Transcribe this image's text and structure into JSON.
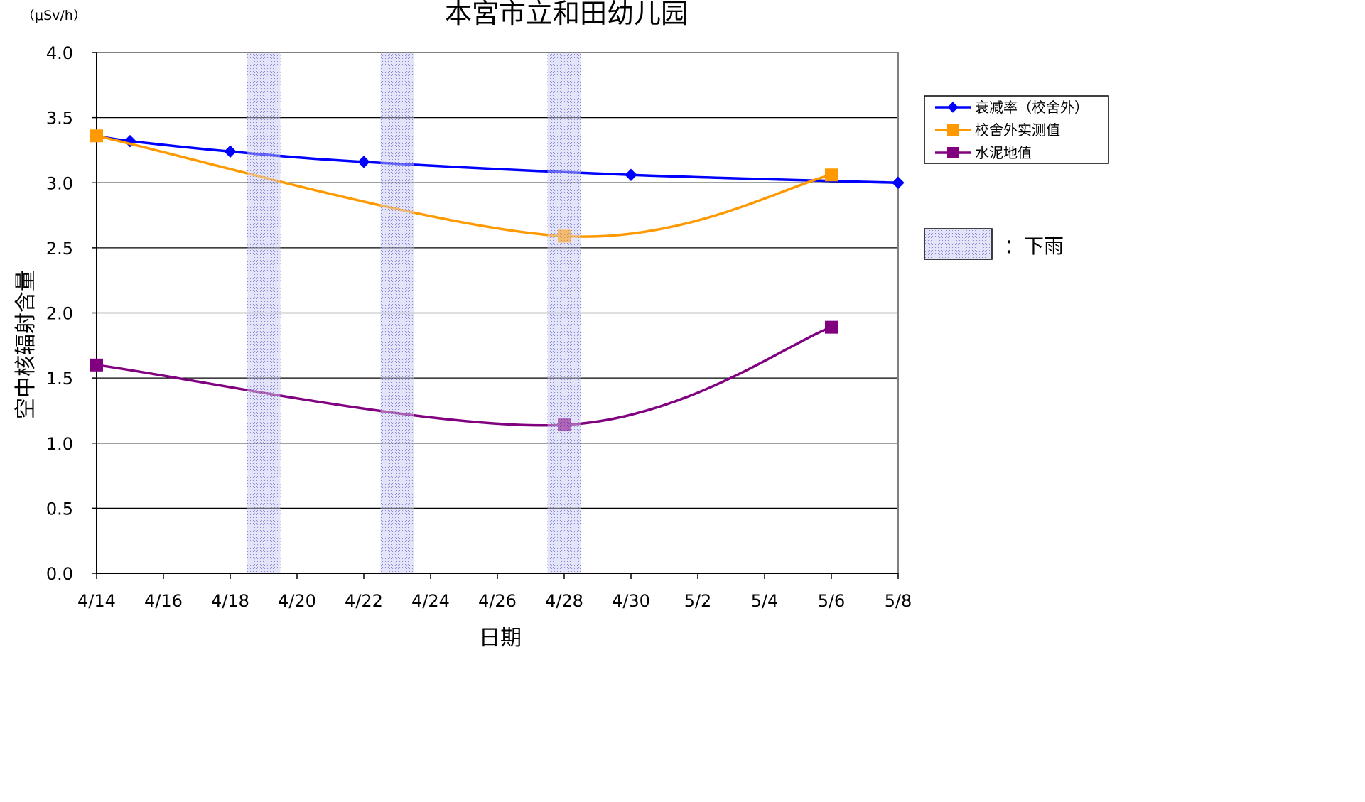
{
  "chart_data": {
    "type": "line",
    "title": "本宮市立和田幼儿园",
    "unit_label": "（μSv/h）",
    "xlabel": "日期",
    "ylabel": "空中核辐射含量",
    "x_ticks": [
      "4/14",
      "4/16",
      "4/18",
      "4/20",
      "4/22",
      "4/24",
      "4/26",
      "4/28",
      "4/30",
      "5/2",
      "5/4",
      "5/6",
      "5/8"
    ],
    "y_ticks": [
      "0.0",
      "0.5",
      "1.0",
      "1.5",
      "2.0",
      "2.5",
      "3.0",
      "3.5",
      "4.0"
    ],
    "ylim": [
      0,
      4.0
    ],
    "xlim": [
      "4/14",
      "5/8"
    ],
    "grid": "horizontal",
    "legend_position": "right",
    "rain_periods": [
      {
        "start": "4/18",
        "end": "4/19"
      },
      {
        "start": "4/22",
        "end": "4/23"
      },
      {
        "start": "4/27",
        "end": "4/28"
      }
    ],
    "rain_legend_label": "：下雨",
    "series": [
      {
        "name": "衰减率（校舍外）",
        "color": "#0000ff",
        "marker": "diamond",
        "points": [
          {
            "x": "4/14",
            "y": 3.36
          },
          {
            "x": "4/15",
            "y": 3.32
          },
          {
            "x": "4/18",
            "y": 3.24
          },
          {
            "x": "4/22",
            "y": 3.16
          },
          {
            "x": "4/30",
            "y": 3.06
          },
          {
            "x": "5/8",
            "y": 3.0
          }
        ]
      },
      {
        "name": "校舍外实测值",
        "color": "#ff9900",
        "marker": "square",
        "points": [
          {
            "x": "4/14",
            "y": 3.36
          },
          {
            "x": "4/28",
            "y": 2.59
          },
          {
            "x": "5/6",
            "y": 3.06
          }
        ]
      },
      {
        "name": "水泥地值",
        "color": "#800080",
        "marker": "square",
        "points": [
          {
            "x": "4/14",
            "y": 1.6
          },
          {
            "x": "4/28",
            "y": 1.14
          },
          {
            "x": "5/6",
            "y": 1.89
          }
        ]
      }
    ]
  }
}
